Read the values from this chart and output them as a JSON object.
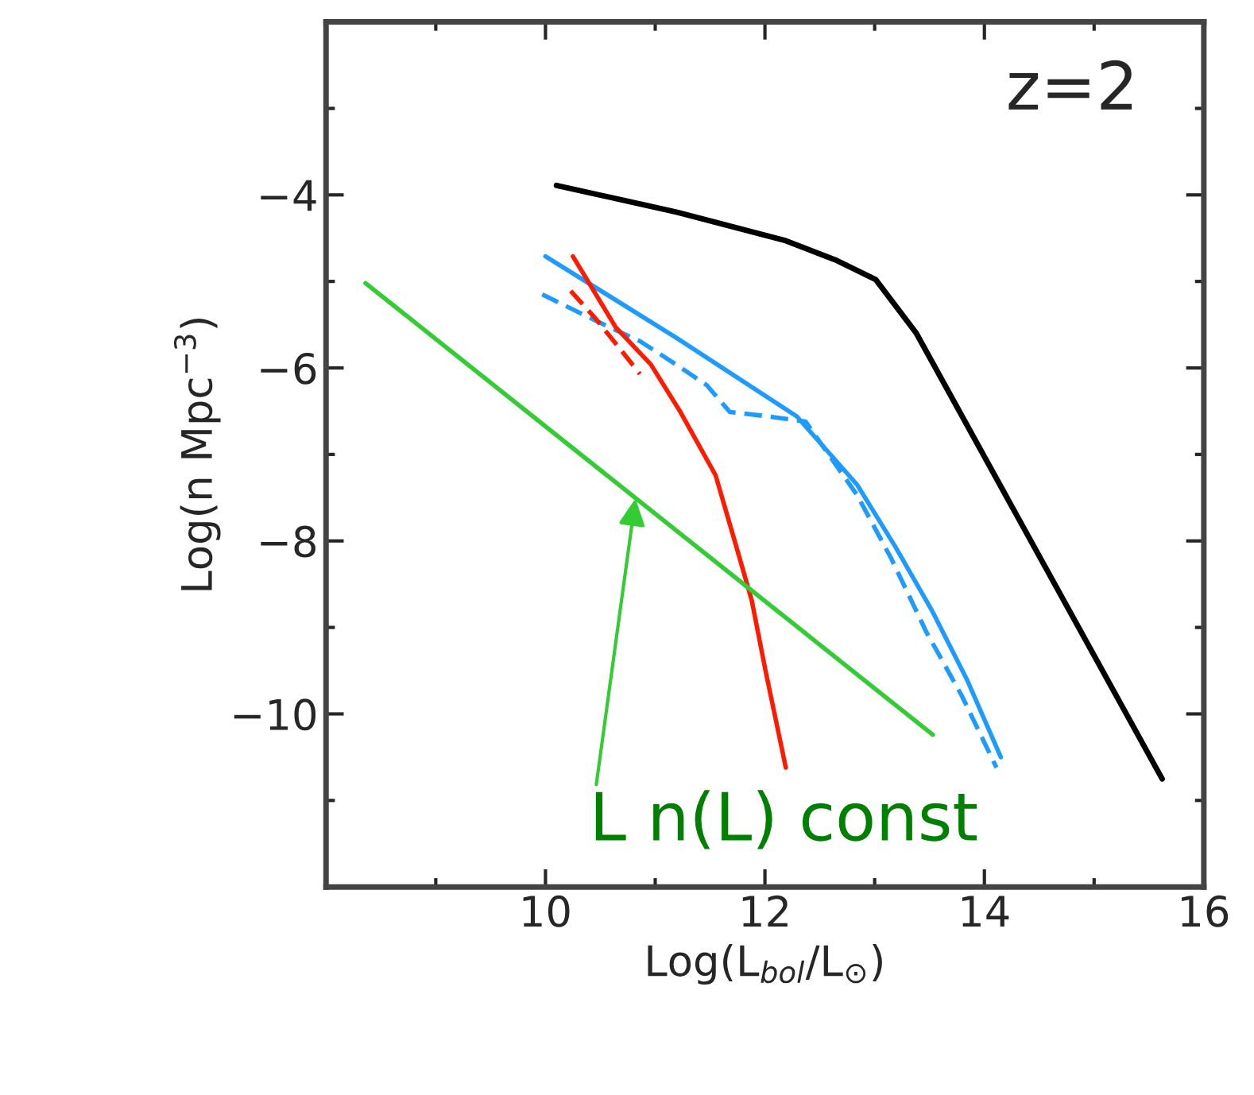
{
  "chart_data": {
    "type": "line",
    "xlabel": "Log(L$_{bol}$/L$_{⊙}$)",
    "ylabel": "Log(n Mpc$^{−3}$)",
    "xlim": [
      8,
      16
    ],
    "ylim": [
      -12,
      -2
    ],
    "xticks": [
      10,
      12,
      14,
      16
    ],
    "yticks": [
      -4,
      -6,
      -8,
      -10
    ],
    "grid": false,
    "marker": "none",
    "series": [
      {
        "color": "#000000",
        "line_style": "solid",
        "x": [
          10.1,
          11.2,
          12.19,
          12.64,
          13.01,
          13.38,
          15.62
        ],
        "values": [
          -3.89,
          -4.2,
          -4.53,
          -4.75,
          -4.98,
          -5.6,
          -10.75
        ]
      },
      {
        "color": "#1e9bff",
        "line_style": "solid",
        "x": [
          10.0,
          11.19,
          12.29,
          12.84,
          13.19,
          13.52,
          13.84,
          14.15
        ],
        "values": [
          -4.71,
          -5.65,
          -6.56,
          -7.35,
          -8.07,
          -8.8,
          -9.6,
          -10.5
        ]
      },
      {
        "color": "#1e9bff",
        "line_style": "dashed",
        "x": [
          9.97,
          10.55,
          10.86,
          11.19,
          11.47,
          11.68,
          11.96,
          12.37,
          12.84,
          13.15,
          13.47,
          13.79,
          14.11
        ],
        "values": [
          -5.15,
          -5.51,
          -5.69,
          -5.96,
          -6.2,
          -6.51,
          -6.55,
          -6.62,
          -7.47,
          -8.2,
          -9.05,
          -9.78,
          -10.62
        ]
      },
      {
        "color": "#ff1a00",
        "line_style": "solid",
        "x": [
          10.25,
          10.64,
          10.96,
          11.23,
          11.55,
          11.74,
          11.88,
          12.01,
          12.19
        ],
        "values": [
          -4.71,
          -5.53,
          -5.96,
          -6.51,
          -7.24,
          -8.07,
          -8.69,
          -9.53,
          -10.62
        ]
      },
      {
        "color": "#ff1a00",
        "line_style": "dashed",
        "x": [
          10.23,
          10.45,
          10.68,
          10.86
        ],
        "values": [
          -5.11,
          -5.42,
          -5.78,
          -6.07
        ]
      },
      {
        "color": "#33cc33",
        "line_style": "solid",
        "x": [
          8.36,
          13.53
        ],
        "values": [
          -5.02,
          -10.24
        ]
      }
    ],
    "annotations": [
      "z=2",
      {
        "text": "L n(L) const",
        "x": 10.82,
        "y": -7.51
      }
    ]
  }
}
